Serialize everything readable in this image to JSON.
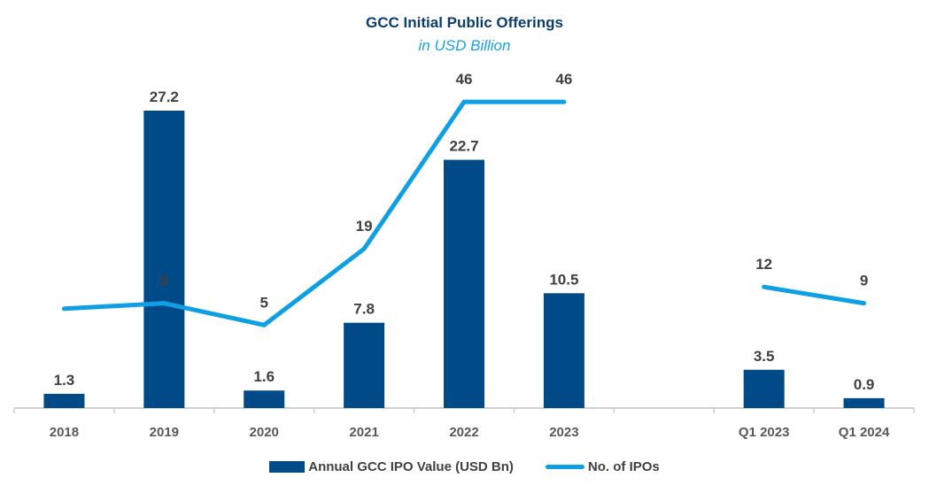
{
  "chart_data": {
    "type": "bar",
    "title": "GCC Initial Public Offerings",
    "subtitle": "in USD Billion",
    "categories": [
      "2018",
      "2019",
      "2020",
      "2021",
      "2022",
      "2023",
      "",
      "Q1 2023",
      "Q1 2024"
    ],
    "series": [
      {
        "name": "Annual GCC IPO Value (USD Bn)",
        "type": "bar",
        "color": "#004a88",
        "values": [
          1.3,
          27.2,
          1.6,
          7.8,
          22.7,
          10.5,
          null,
          3.5,
          0.9
        ],
        "labels": [
          "1.3",
          "27.2",
          "1.6",
          "7.8",
          "22.7",
          "10.5",
          "",
          "3.5",
          "0.9"
        ]
      },
      {
        "name": "No. of IPOs",
        "type": "line",
        "color": "#0ea0e3",
        "values": [
          8,
          9,
          5,
          19,
          46,
          46,
          null,
          12,
          9
        ],
        "labels": [
          "",
          "9",
          "5",
          "19",
          "46",
          "46",
          "",
          "12",
          "9"
        ]
      }
    ],
    "xlabel": "",
    "ylabel": "",
    "ylim_bar": [
      0,
      37
    ],
    "ylim_line": [
      0,
      65
    ],
    "grid": false,
    "legend": "bottom-center"
  }
}
